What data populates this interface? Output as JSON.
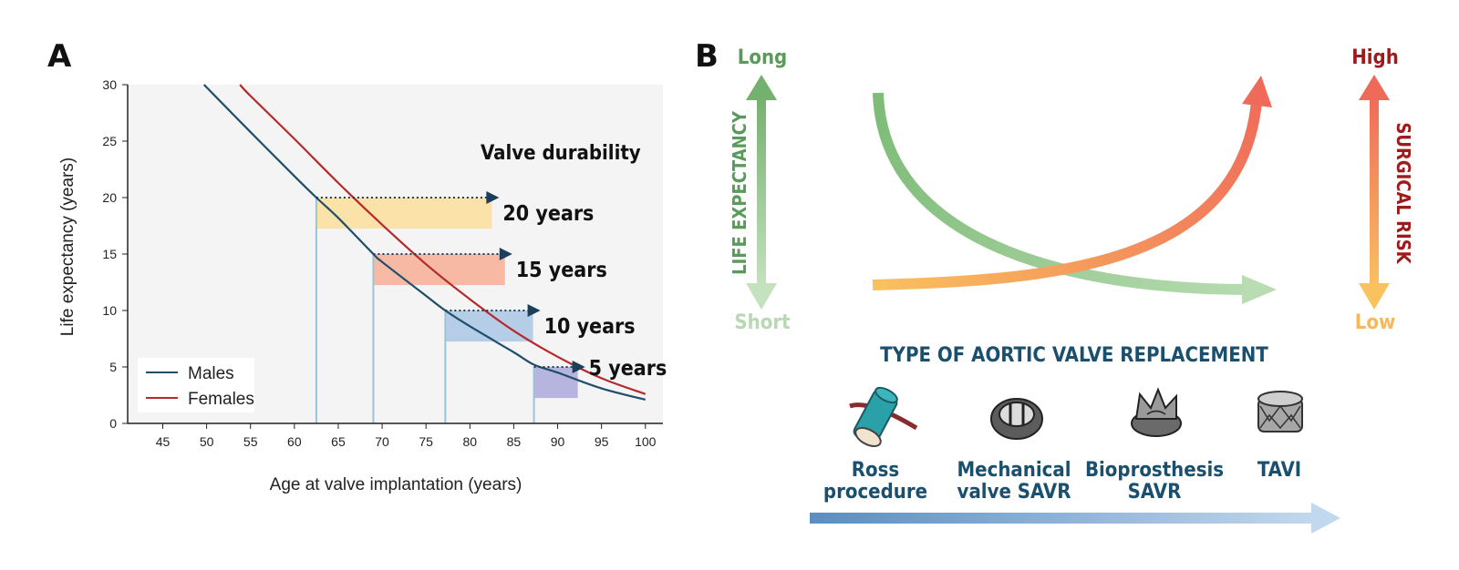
{
  "panel_a": {
    "letter": "A",
    "annotation_title": "Valve durability",
    "colors": {
      "males": "#1e4e6a",
      "females": "#b52a2a",
      "plot_bg": "#f4f4f4"
    },
    "chart_data": {
      "type": "line",
      "xlabel": "Age at valve implantation (years)",
      "ylabel": "Life expectancy (years)",
      "xlim": [
        41,
        102
      ],
      "ylim": [
        0,
        30
      ],
      "x_ticks": [
        45,
        50,
        55,
        60,
        65,
        70,
        75,
        80,
        85,
        90,
        95,
        100
      ],
      "y_ticks": [
        0,
        5,
        10,
        15,
        20,
        25,
        30
      ],
      "grid": false,
      "legend_position": "bottom-left",
      "series": [
        {
          "name": "Males",
          "x": [
            49.7,
            55,
            60,
            62.5,
            65,
            69,
            70,
            75,
            77.2,
            80,
            85,
            87.3,
            90,
            95,
            100
          ],
          "y": [
            30,
            25.8,
            21.9,
            20,
            18.2,
            15,
            14.3,
            11.3,
            10,
            8.6,
            6.3,
            5.2,
            4.5,
            3.1,
            2.1
          ]
        },
        {
          "name": "Females",
          "x": [
            53.8,
            55,
            60,
            65,
            70,
            75,
            80,
            85,
            90,
            95,
            100
          ],
          "y": [
            30,
            29,
            25.2,
            21.3,
            17.6,
            14.1,
            11,
            8.2,
            5.9,
            4,
            2.6
          ]
        }
      ],
      "durability": [
        {
          "label": "20 years",
          "start_age": 62.5,
          "life_expectancy": 20,
          "years": 20,
          "color": "#fbe2a8"
        },
        {
          "label": "15 years",
          "start_age": 69,
          "life_expectancy": 15,
          "years": 15,
          "color": "#f7b9a3"
        },
        {
          "label": "10 years",
          "start_age": 77.2,
          "life_expectancy": 10,
          "years": 10,
          "color": "#b5cde6"
        },
        {
          "label": "5 years",
          "start_age": 87.3,
          "life_expectancy": 5,
          "years": 5,
          "color": "#b7b4df"
        }
      ]
    }
  },
  "panel_b": {
    "letter": "B",
    "left_top": "Long",
    "left_bottom": "Short",
    "left_axis_label": "LIFE EXPECTANCY",
    "right_top": "High",
    "right_bottom": "Low",
    "right_axis_label": "SURGICAL RISK",
    "type_title": "TYPE OF AORTIC VALVE REPLACEMENT",
    "valves": [
      {
        "line1": "Ross",
        "line2": "procedure",
        "icon": "ross-procedure-icon"
      },
      {
        "line1": "Mechanical",
        "line2": "valve SAVR",
        "icon": "mechanical-valve-icon"
      },
      {
        "line1": "Bioprosthesis",
        "line2": "SAVR",
        "icon": "bioprosthesis-icon"
      },
      {
        "line1": "TAVI",
        "line2": "",
        "icon": "tavi-icon"
      }
    ],
    "colors": {
      "green_dark": "#5a9a5a",
      "green_light": "#b7d9b1",
      "red": "#f07a66",
      "orange": "#f7b85a",
      "dark_red": "#9e1b1b",
      "navy": "#1b4f6e",
      "blue": "#5b8dbf"
    }
  }
}
